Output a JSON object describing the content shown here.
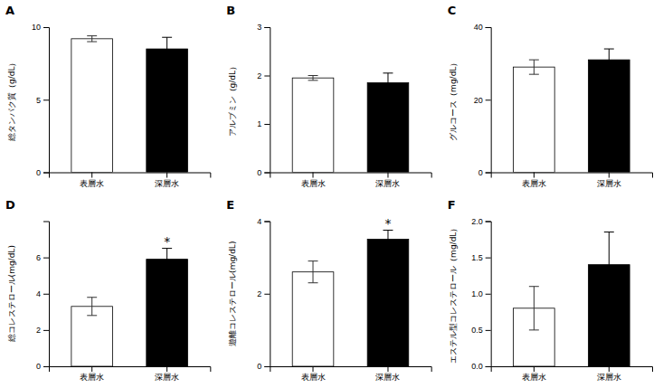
{
  "chart_data": [
    {
      "type": "bar",
      "title": "A",
      "ylabel": "総タンパク質（g/dL）",
      "categories": [
        "表層水",
        "深層水"
      ],
      "values": [
        9.2,
        8.5
      ],
      "errors": [
        0.2,
        0.8
      ],
      "colors": [
        "white",
        "black"
      ],
      "ylim": [
        0,
        10
      ],
      "yticks": [
        0,
        5,
        10
      ]
    },
    {
      "type": "bar",
      "title": "B",
      "ylabel": "アルブミン（g/dL）",
      "categories": [
        "表層水",
        "深層水"
      ],
      "values": [
        1.95,
        1.85
      ],
      "errors": [
        0.05,
        0.2
      ],
      "colors": [
        "white",
        "black"
      ],
      "ylim": [
        0,
        3
      ],
      "yticks": [
        0,
        1,
        2,
        3
      ]
    },
    {
      "type": "bar",
      "title": "C",
      "ylabel": "グルコース（mg/dL）",
      "categories": [
        "表層水",
        "深層水"
      ],
      "values": [
        29.0,
        31.0
      ],
      "errors": [
        2.0,
        3.0
      ],
      "colors": [
        "white",
        "black"
      ],
      "ylim": [
        0,
        40
      ],
      "yticks": [
        0,
        20,
        40
      ]
    },
    {
      "type": "bar",
      "title": "D",
      "ylabel": "総コレステロール(mg/dL)",
      "categories": [
        "表層水",
        "深層水"
      ],
      "values": [
        3.3,
        5.9
      ],
      "errors": [
        0.5,
        0.6
      ],
      "colors": [
        "white",
        "black"
      ],
      "ylim": [
        0,
        8
      ],
      "yticks": [
        0,
        2,
        4,
        6
      ],
      "annotation": {
        "text": "*",
        "category": "深層水"
      }
    },
    {
      "type": "bar",
      "title": "E",
      "ylabel": "遊離コレステロール(mg/dL)",
      "categories": [
        "表層水",
        "深層水"
      ],
      "values": [
        2.6,
        3.5
      ],
      "errors": [
        0.3,
        0.25
      ],
      "colors": [
        "white",
        "black"
      ],
      "ylim": [
        0,
        4
      ],
      "yticks": [
        0,
        2,
        4
      ],
      "annotation": {
        "text": "*",
        "category": "深層水"
      }
    },
    {
      "type": "bar",
      "title": "F",
      "ylabel": "エステル型コレステロール（mg/dL）",
      "categories": [
        "表層水",
        "深層水"
      ],
      "values": [
        0.8,
        1.4
      ],
      "errors": [
        0.3,
        0.45
      ],
      "colors": [
        "white",
        "black"
      ],
      "ylim": [
        0,
        2
      ],
      "yticks": [
        {
          "value": 0,
          "label": "0.0"
        },
        0.5,
        {
          "value": 1,
          "label": "1.0"
        },
        1.5,
        {
          "value": 2,
          "label": "2.0"
        }
      ]
    }
  ]
}
